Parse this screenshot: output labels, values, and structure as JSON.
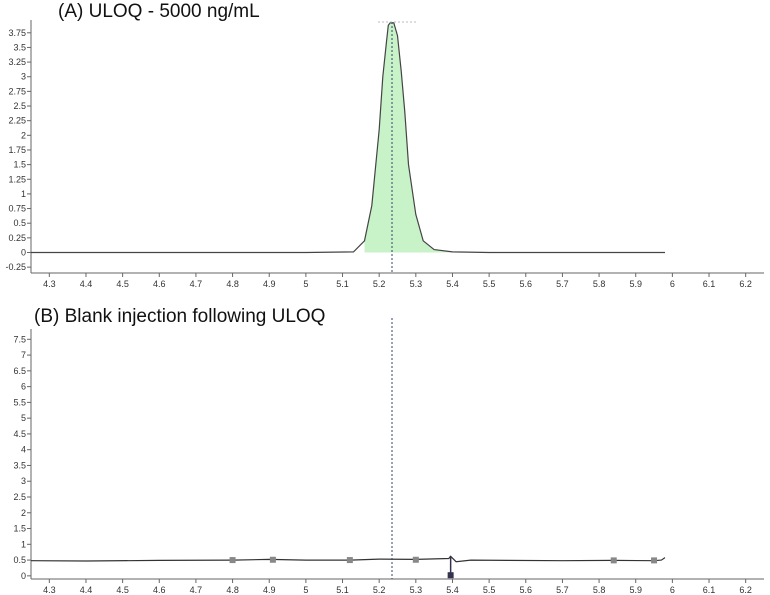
{
  "chart_data": [
    {
      "type": "line",
      "title": "(A) ULOQ - 5000 ng/mL",
      "xlim": [
        4.25,
        6.25
      ],
      "ylim": [
        -0.35,
        3.9
      ],
      "x_ticks": [
        "4.3",
        "4.4",
        "4.5",
        "4.6",
        "4.7",
        "4.8",
        "4.9",
        "5",
        "5.1",
        "5.2",
        "5.3",
        "5.4",
        "5.5",
        "5.6",
        "5.7",
        "5.8",
        "5.9",
        "6",
        "6.1",
        "6.2"
      ],
      "y_ticks": [
        "-0.25",
        "0",
        "0.25",
        "0.5",
        "0.75",
        "1",
        "1.25",
        "1.5",
        "1.75",
        "2",
        "2.25",
        "2.5",
        "2.75",
        "3",
        "3.25",
        "3.5",
        "3.75"
      ],
      "grid": false,
      "series": [
        {
          "x": [
            4.25,
            4.6,
            5.0,
            5.13,
            5.16,
            5.18,
            5.2,
            5.21,
            5.22,
            5.225,
            5.23,
            5.24,
            5.25,
            5.26,
            5.27,
            5.28,
            5.3,
            5.32,
            5.35,
            5.4,
            5.5,
            5.98
          ],
          "y": [
            0.0,
            0.0,
            0.0,
            0.01,
            0.2,
            0.8,
            2.1,
            3.0,
            3.6,
            3.88,
            3.92,
            3.92,
            3.7,
            3.1,
            2.4,
            1.5,
            0.65,
            0.2,
            0.05,
            0.01,
            0.0,
            0.0
          ]
        }
      ],
      "peak_fill": {
        "x_start": 5.16,
        "x_end": 5.4,
        "color": "#c8f2c8"
      },
      "marker_line_x": 5.235,
      "line_color": "#444444"
    },
    {
      "type": "line",
      "title": "(B) Blank injection following ULOQ",
      "xlim": [
        4.25,
        6.25
      ],
      "ylim": [
        -0.1,
        7.7
      ],
      "x_ticks": [
        "4.3",
        "4.4",
        "4.5",
        "4.6",
        "4.7",
        "4.8",
        "4.9",
        "5",
        "5.1",
        "5.2",
        "5.3",
        "5.4",
        "5.5",
        "5.6",
        "5.7",
        "5.8",
        "5.9",
        "6",
        "6.1",
        "6.2"
      ],
      "y_ticks": [
        "0",
        "0.5",
        "1",
        "1.5",
        "2",
        "2.5",
        "3",
        "3.5",
        "4",
        "4.5",
        "5",
        "5.5",
        "6",
        "6.5",
        "7",
        "7.5"
      ],
      "grid": false,
      "series": [
        {
          "x": [
            4.25,
            4.4,
            4.6,
            4.8,
            4.9,
            5.0,
            5.12,
            5.2,
            5.3,
            5.39,
            5.395,
            5.41,
            5.45,
            5.55,
            5.7,
            5.84,
            5.95,
            5.97,
            5.98
          ],
          "y": [
            0.48,
            0.47,
            0.49,
            0.5,
            0.52,
            0.5,
            0.5,
            0.53,
            0.52,
            0.55,
            0.62,
            0.45,
            0.5,
            0.49,
            0.48,
            0.49,
            0.48,
            0.5,
            0.58
          ]
        }
      ],
      "markers": [
        {
          "x": 4.8,
          "y": 0.5,
          "color": "#888888"
        },
        {
          "x": 4.91,
          "y": 0.51,
          "color": "#888888"
        },
        {
          "x": 5.12,
          "y": 0.5,
          "color": "#888888"
        },
        {
          "x": 5.3,
          "y": 0.51,
          "color": "#888888"
        },
        {
          "x": 5.84,
          "y": 0.49,
          "color": "#888888"
        },
        {
          "x": 5.95,
          "y": 0.49,
          "color": "#888888"
        },
        {
          "x": 5.395,
          "y": 0.02,
          "color": "#33334d"
        }
      ],
      "marker_line_x": 5.235,
      "line_color": "#333333"
    }
  ]
}
